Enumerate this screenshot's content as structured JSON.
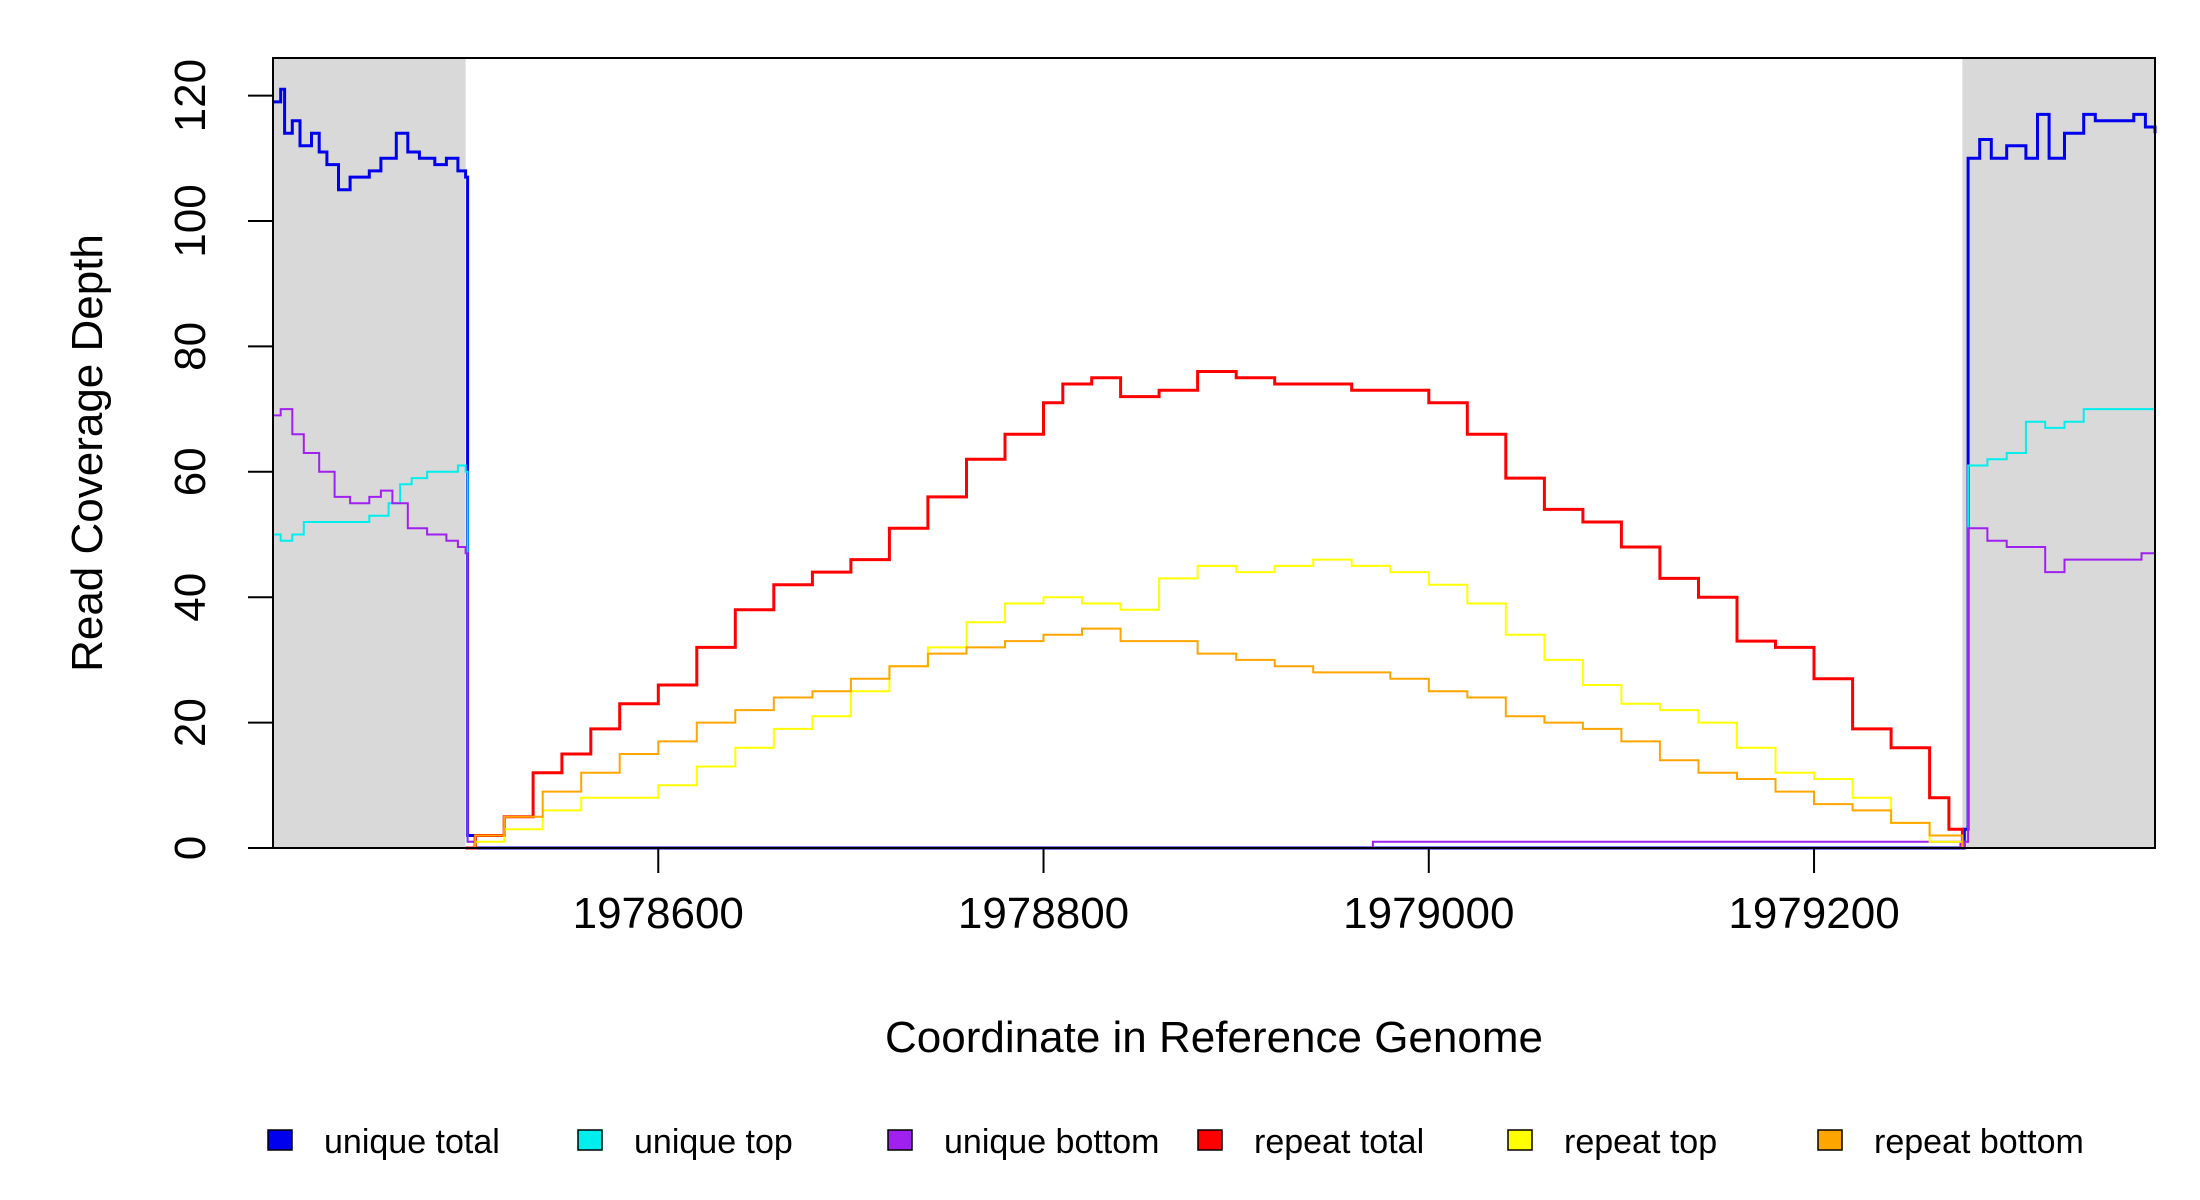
{
  "chart_data": {
    "type": "line",
    "xlabel": "Coordinate in Reference Genome",
    "ylabel": "Read Coverage Depth",
    "xlim": [
      1978400,
      1979377
    ],
    "ylim": [
      0,
      126
    ],
    "x_ticks": [
      {
        "value": 1978600,
        "label": "1978600"
      },
      {
        "value": 1978800,
        "label": "1978800"
      },
      {
        "value": 1979000,
        "label": "1979000"
      },
      {
        "value": 1979200,
        "label": "1979200"
      }
    ],
    "y_ticks": [
      {
        "value": 0,
        "label": "0"
      },
      {
        "value": 20,
        "label": "20"
      },
      {
        "value": 40,
        "label": "40"
      },
      {
        "value": 60,
        "label": "60"
      },
      {
        "value": 80,
        "label": "80"
      },
      {
        "value": 100,
        "label": "100"
      },
      {
        "value": 120,
        "label": "120"
      }
    ],
    "shaded_regions": [
      [
        1978400,
        1978500
      ],
      [
        1979277,
        1979377
      ]
    ],
    "grid": false,
    "legend_position": "bottom",
    "series": [
      {
        "name": "unique total",
        "color": "#0000ee",
        "width": 3,
        "x": [
          1978400,
          1978404,
          1978406,
          1978410,
          1978414,
          1978420,
          1978424,
          1978428,
          1978434,
          1978440,
          1978450,
          1978456,
          1978464,
          1978470,
          1978476,
          1978484,
          1978490,
          1978496,
          1978500,
          1978501,
          1978505,
          1978600,
          1978800,
          1978900,
          1979000,
          1979100,
          1979200,
          1979250,
          1979270,
          1979276,
          1979278,
          1979280,
          1979286,
          1979292,
          1979300,
          1979310,
          1979316,
          1979322,
          1979330,
          1979340,
          1979346,
          1979356,
          1979366,
          1979372,
          1979377
        ],
        "y": [
          119,
          121,
          114,
          116,
          112,
          114,
          111,
          109,
          105,
          107,
          108,
          110,
          114,
          111,
          110,
          109,
          110,
          108,
          107,
          2,
          0,
          0,
          0,
          0,
          0,
          0,
          0,
          0,
          0,
          0,
          3,
          110,
          113,
          110,
          112,
          110,
          117,
          110,
          114,
          117,
          116,
          116,
          117,
          115,
          114
        ]
      },
      {
        "name": "unique top",
        "color": "#00eeee",
        "width": 2,
        "x": [
          1978400,
          1978404,
          1978410,
          1978416,
          1978424,
          1978432,
          1978440,
          1978450,
          1978460,
          1978466,
          1978472,
          1978480,
          1978490,
          1978496,
          1978500,
          1978501,
          1978505,
          1978700,
          1978900,
          1979100,
          1979276,
          1979278,
          1979280,
          1979290,
          1979300,
          1979310,
          1979320,
          1979330,
          1979340,
          1979350,
          1979360,
          1979370,
          1979377
        ],
        "y": [
          50,
          49,
          50,
          52,
          52,
          52,
          52,
          53,
          55,
          58,
          59,
          60,
          60,
          61,
          60,
          1,
          0,
          0,
          0,
          0,
          0,
          1,
          61,
          62,
          63,
          68,
          67,
          68,
          70,
          70,
          70,
          70,
          68
        ]
      },
      {
        "name": "unique bottom",
        "color": "#a020f0",
        "width": 2,
        "x": [
          1978400,
          1978404,
          1978410,
          1978416,
          1978424,
          1978432,
          1978440,
          1978450,
          1978456,
          1978462,
          1978470,
          1978480,
          1978490,
          1978496,
          1978500,
          1978501,
          1978505,
          1978700,
          1978970,
          1978971,
          1979100,
          1979200,
          1979276,
          1979278,
          1979280,
          1979290,
          1979300,
          1979310,
          1979320,
          1979330,
          1979340,
          1979350,
          1979360,
          1979370,
          1979377
        ],
        "y": [
          69,
          70,
          66,
          63,
          60,
          56,
          55,
          56,
          57,
          55,
          51,
          50,
          49,
          48,
          47,
          1,
          0,
          0,
          0,
          1,
          1,
          1,
          0,
          1,
          51,
          49,
          48,
          48,
          44,
          46,
          46,
          46,
          46,
          47,
          46
        ]
      },
      {
        "name": "repeat total",
        "color": "#ff0000",
        "width": 3,
        "x": [
          1978500,
          1978505,
          1978520,
          1978535,
          1978550,
          1978565,
          1978580,
          1978600,
          1978620,
          1978640,
          1978660,
          1978680,
          1978700,
          1978720,
          1978740,
          1978760,
          1978780,
          1978800,
          1978810,
          1978825,
          1978840,
          1978860,
          1978880,
          1978900,
          1978920,
          1978940,
          1978960,
          1978980,
          1979000,
          1979020,
          1979040,
          1979060,
          1979080,
          1979100,
          1979120,
          1979140,
          1979160,
          1979180,
          1979200,
          1979220,
          1979240,
          1979260,
          1979270,
          1979277
        ],
        "y": [
          0,
          2,
          5,
          12,
          15,
          19,
          23,
          26,
          32,
          38,
          42,
          44,
          46,
          51,
          56,
          62,
          66,
          71,
          74,
          75,
          72,
          73,
          76,
          75,
          74,
          74,
          73,
          73,
          71,
          66,
          59,
          54,
          52,
          48,
          43,
          40,
          33,
          32,
          27,
          19,
          16,
          8,
          3,
          0
        ]
      },
      {
        "name": "repeat top",
        "color": "#ffff00",
        "width": 2,
        "x": [
          1978500,
          1978505,
          1978520,
          1978540,
          1978560,
          1978580,
          1978600,
          1978620,
          1978640,
          1978660,
          1978680,
          1978700,
          1978720,
          1978740,
          1978760,
          1978780,
          1978800,
          1978820,
          1978840,
          1978860,
          1978880,
          1978900,
          1978920,
          1978940,
          1978960,
          1978980,
          1979000,
          1979020,
          1979040,
          1979060,
          1979080,
          1979100,
          1979120,
          1979140,
          1979160,
          1979180,
          1979200,
          1979220,
          1979240,
          1979260,
          1979277
        ],
        "y": [
          0,
          1,
          3,
          6,
          8,
          8,
          10,
          13,
          16,
          19,
          21,
          25,
          29,
          32,
          36,
          39,
          40,
          39,
          38,
          43,
          45,
          44,
          45,
          46,
          45,
          44,
          42,
          39,
          34,
          30,
          26,
          23,
          22,
          20,
          16,
          12,
          11,
          8,
          4,
          1,
          0
        ]
      },
      {
        "name": "repeat bottom",
        "color": "#ffa500",
        "width": 2,
        "x": [
          1978500,
          1978505,
          1978520,
          1978540,
          1978560,
          1978580,
          1978600,
          1978620,
          1978640,
          1978660,
          1978680,
          1978700,
          1978720,
          1978740,
          1978760,
          1978780,
          1978800,
          1978820,
          1978840,
          1978860,
          1978880,
          1978900,
          1978920,
          1978940,
          1978960,
          1978980,
          1979000,
          1979020,
          1979040,
          1979060,
          1979080,
          1979100,
          1979120,
          1979140,
          1979160,
          1979180,
          1979200,
          1979220,
          1979240,
          1979260,
          1979277
        ],
        "y": [
          0,
          2,
          5,
          9,
          12,
          15,
          17,
          20,
          22,
          24,
          25,
          27,
          29,
          31,
          32,
          33,
          34,
          35,
          33,
          33,
          31,
          30,
          29,
          28,
          28,
          27,
          25,
          24,
          21,
          20,
          19,
          17,
          14,
          12,
          11,
          9,
          7,
          6,
          4,
          2,
          0
        ]
      }
    ]
  }
}
